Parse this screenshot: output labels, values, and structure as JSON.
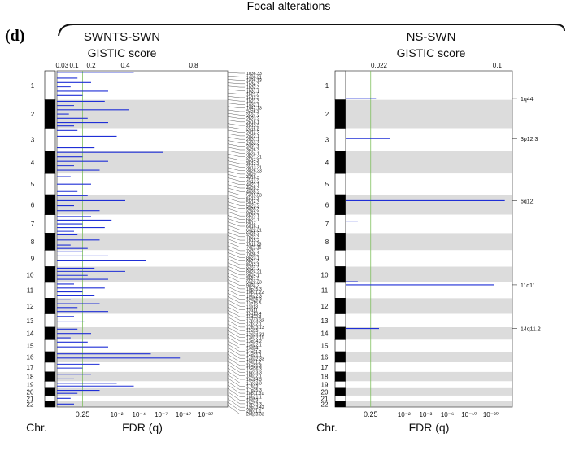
{
  "figure": {
    "panel_letter": "(d)",
    "group_title": "Focal alterations",
    "chr_label": "Chr."
  },
  "chart_data": [
    {
      "type": "bar",
      "orientation": "horizontal",
      "title": "SWNTS-SWN",
      "subtitle": "GISTIC score",
      "xlabel": "FDR (q)",
      "top_ticks": [
        "0.03",
        "0.1",
        "0.2",
        "0.4",
        "0.8"
      ],
      "top_tick_values": [
        0.03,
        0.1,
        0.2,
        0.4,
        0.8
      ],
      "bottom_ticks": [
        "0.25",
        "10⁻²",
        "10⁻⁴",
        "10⁻⁷",
        "10⁻¹⁰",
        "10⁻³⁰"
      ],
      "top_range": [
        0,
        1.0
      ],
      "threshold_q": 0.25,
      "chromosomes": [
        "1",
        "2",
        "3",
        "4",
        "5",
        "6",
        "7",
        "8",
        "9",
        "10",
        "11",
        "12",
        "13",
        "14",
        "15",
        "16",
        "17",
        "18",
        "19",
        "20",
        "21",
        "22"
      ],
      "chromosome_sizes": [
        249,
        243,
        198,
        191,
        181,
        171,
        159,
        146,
        141,
        136,
        135,
        134,
        115,
        107,
        103,
        90,
        83,
        80,
        59,
        64,
        47,
        51
      ],
      "series_color": "#1f2fd6",
      "bars": [
        {
          "chr": "1",
          "pos": 0.05,
          "score": 0.45
        },
        {
          "chr": "1",
          "pos": 0.25,
          "score": 0.12
        },
        {
          "chr": "1",
          "pos": 0.4,
          "score": 0.2
        },
        {
          "chr": "1",
          "pos": 0.55,
          "score": 0.08
        },
        {
          "chr": "1",
          "pos": 0.7,
          "score": 0.3
        },
        {
          "chr": "1",
          "pos": 0.85,
          "score": 0.15
        },
        {
          "chr": "2",
          "pos": 0.05,
          "score": 0.28
        },
        {
          "chr": "2",
          "pos": 0.2,
          "score": 0.1
        },
        {
          "chr": "2",
          "pos": 0.35,
          "score": 0.42
        },
        {
          "chr": "2",
          "pos": 0.5,
          "score": 0.07
        },
        {
          "chr": "2",
          "pos": 0.65,
          "score": 0.18
        },
        {
          "chr": "2",
          "pos": 0.8,
          "score": 0.3
        },
        {
          "chr": "2",
          "pos": 0.92,
          "score": 0.1
        },
        {
          "chr": "3",
          "pos": 0.1,
          "score": 0.12
        },
        {
          "chr": "3",
          "pos": 0.35,
          "score": 0.35
        },
        {
          "chr": "3",
          "pos": 0.6,
          "score": 0.09
        },
        {
          "chr": "3",
          "pos": 0.85,
          "score": 0.22
        },
        {
          "chr": "4",
          "pos": 0.05,
          "score": 0.62
        },
        {
          "chr": "4",
          "pos": 0.25,
          "score": 0.15
        },
        {
          "chr": "4",
          "pos": 0.45,
          "score": 0.3
        },
        {
          "chr": "4",
          "pos": 0.65,
          "score": 0.1
        },
        {
          "chr": "4",
          "pos": 0.85,
          "score": 0.25
        },
        {
          "chr": "5",
          "pos": 0.15,
          "score": 0.08
        },
        {
          "chr": "5",
          "pos": 0.5,
          "score": 0.2
        },
        {
          "chr": "5",
          "pos": 0.85,
          "score": 0.12
        },
        {
          "chr": "6",
          "pos": 0.05,
          "score": 0.18
        },
        {
          "chr": "6",
          "pos": 0.3,
          "score": 0.4
        },
        {
          "chr": "6",
          "pos": 0.55,
          "score": 0.1
        },
        {
          "chr": "6",
          "pos": 0.8,
          "score": 0.25
        },
        {
          "chr": "7",
          "pos": 0.1,
          "score": 0.2
        },
        {
          "chr": "7",
          "pos": 0.3,
          "score": 0.32
        },
        {
          "chr": "7",
          "pos": 0.5,
          "score": 0.15
        },
        {
          "chr": "7",
          "pos": 0.7,
          "score": 0.28
        },
        {
          "chr": "7",
          "pos": 0.9,
          "score": 0.1
        },
        {
          "chr": "8",
          "pos": 0.1,
          "score": 0.12
        },
        {
          "chr": "8",
          "pos": 0.4,
          "score": 0.25
        },
        {
          "chr": "8",
          "pos": 0.7,
          "score": 0.08
        },
        {
          "chr": "8",
          "pos": 0.9,
          "score": 0.18
        },
        {
          "chr": "9",
          "pos": 0.1,
          "score": 0.15
        },
        {
          "chr": "9",
          "pos": 0.35,
          "score": 0.3
        },
        {
          "chr": "9",
          "pos": 0.65,
          "score": 0.52
        },
        {
          "chr": "9",
          "pos": 0.9,
          "score": 0.12
        },
        {
          "chr": "10",
          "pos": 0.1,
          "score": 0.22
        },
        {
          "chr": "10",
          "pos": 0.3,
          "score": 0.4
        },
        {
          "chr": "10",
          "pos": 0.55,
          "score": 0.18
        },
        {
          "chr": "10",
          "pos": 0.8,
          "score": 0.3
        },
        {
          "chr": "11",
          "pos": 0.1,
          "score": 0.1
        },
        {
          "chr": "11",
          "pos": 0.35,
          "score": 0.28
        },
        {
          "chr": "11",
          "pos": 0.6,
          "score": 0.15
        },
        {
          "chr": "11",
          "pos": 0.85,
          "score": 0.22
        },
        {
          "chr": "12",
          "pos": 0.1,
          "score": 0.08
        },
        {
          "chr": "12",
          "pos": 0.35,
          "score": 0.25
        },
        {
          "chr": "12",
          "pos": 0.6,
          "score": 0.12
        },
        {
          "chr": "12",
          "pos": 0.85,
          "score": 0.3
        },
        {
          "chr": "13",
          "pos": 0.2,
          "score": 0.1
        },
        {
          "chr": "13",
          "pos": 0.6,
          "score": 0.16
        },
        {
          "chr": "14",
          "pos": 0.15,
          "score": 0.12
        },
        {
          "chr": "14",
          "pos": 0.5,
          "score": 0.2
        },
        {
          "chr": "14",
          "pos": 0.85,
          "score": 0.08
        },
        {
          "chr": "15",
          "pos": 0.2,
          "score": 0.18
        },
        {
          "chr": "15",
          "pos": 0.6,
          "score": 0.3
        },
        {
          "chr": "16",
          "pos": 0.2,
          "score": 0.55
        },
        {
          "chr": "16",
          "pos": 0.6,
          "score": 0.72
        },
        {
          "chr": "17",
          "pos": 0.2,
          "score": 0.25
        },
        {
          "chr": "17",
          "pos": 0.6,
          "score": 0.15
        },
        {
          "chr": "18",
          "pos": 0.25,
          "score": 0.2
        },
        {
          "chr": "18",
          "pos": 0.75,
          "score": 0.1
        },
        {
          "chr": "19",
          "pos": 0.3,
          "score": 0.35
        },
        {
          "chr": "19",
          "pos": 0.7,
          "score": 0.45
        },
        {
          "chr": "20",
          "pos": 0.3,
          "score": 0.25
        },
        {
          "chr": "20",
          "pos": 0.7,
          "score": 0.12
        },
        {
          "chr": "21",
          "pos": 0.5,
          "score": 0.08
        },
        {
          "chr": "22",
          "pos": 0.5,
          "score": 0.1
        }
      ],
      "peak_labels": [
        "1q36.33",
        "1q36.21",
        "1p36.13",
        "1p34.3",
        "1p32.3",
        "1p31.1",
        "1p21.3",
        "1p13.2",
        "1q21.3",
        "1q32.1",
        "1q42.13",
        "2p25.3",
        "2p24.3",
        "2p23.2",
        "2p16.1",
        "2p13.3",
        "2q11.2",
        "2q14.3",
        "2q22.1",
        "2q31.1",
        "2q33.3",
        "2q37.1",
        "3p26.3",
        "3p24.1",
        "3p21.31",
        "3p14.2",
        "3p12.3",
        "3q13.31",
        "3q26.33",
        "3q29",
        "4p16.3",
        "4q13.2",
        "4q22.1",
        "4q28.3",
        "4q35.2",
        "5p15.33",
        "5p13.3",
        "5q14.3",
        "5q23.2",
        "5q35.3",
        "6p25.3",
        "6p22.1",
        "6p21.1",
        "6q12",
        "6q16.1",
        "6q22.31",
        "6q25.3",
        "7p22.3",
        "7p15.2",
        "7q11.23",
        "7q21.11",
        "7q31.2",
        "7q36.3",
        "8p23.1",
        "8p21.3",
        "8q12.1",
        "8q21.3",
        "8q24.21",
        "9p24.1",
        "9p21.3",
        "9q22.33",
        "9q34.3",
        "10p15.3",
        "10p11.22",
        "10q22.3",
        "10q26.3",
        "11p15.5",
        "11p13",
        "11q11",
        "11q13.4",
        "11q22.3",
        "12p13.33",
        "12p12.1",
        "12q13.13",
        "12q15",
        "12q24.31",
        "13q12.11",
        "13q14.2",
        "13q22.1",
        "13q34",
        "14q11.2",
        "14q21.1",
        "14q32.33",
        "15q11.2",
        "15q21.3",
        "15q26.3",
        "16p13.3",
        "16q12.1",
        "16q24.3",
        "17p13.3",
        "17q12",
        "17q25.3",
        "18p11.31",
        "18q21.1",
        "18q23",
        "19p13.3",
        "19q13.42",
        "20p11.1",
        "20q13.33"
      ]
    },
    {
      "type": "bar",
      "orientation": "horizontal",
      "title": "NS-SWN",
      "subtitle": "GISTIC score",
      "xlabel": "FDR (q)",
      "top_ticks": [
        "0.022",
        "0.1"
      ],
      "top_tick_values": [
        0.022,
        0.1
      ],
      "bottom_ticks": [
        "0.25",
        "10⁻²",
        "10⁻³",
        "10⁻⁶",
        "10⁻¹⁰",
        "10⁻²⁰"
      ],
      "top_range": [
        0,
        0.11
      ],
      "threshold_q": 0.25,
      "chromosomes": [
        "1",
        "2",
        "3",
        "4",
        "5",
        "6",
        "7",
        "8",
        "9",
        "10",
        "11",
        "12",
        "13",
        "14",
        "15",
        "16",
        "17",
        "18",
        "19",
        "20",
        "21",
        "22"
      ],
      "chromosome_sizes": [
        249,
        243,
        198,
        191,
        181,
        171,
        159,
        146,
        141,
        136,
        135,
        134,
        115,
        107,
        103,
        90,
        83,
        80,
        59,
        64,
        47,
        51
      ],
      "series_color": "#1f2fd6",
      "bars": [
        {
          "chr": "1",
          "pos": 0.95,
          "score": 0.02,
          "label": "1q44"
        },
        {
          "chr": "3",
          "pos": 0.45,
          "score": 0.029,
          "label": "3p12.3"
        },
        {
          "chr": "6",
          "pos": 0.3,
          "score": 0.105,
          "label": "6q12"
        },
        {
          "chr": "7",
          "pos": 0.35,
          "score": 0.008
        },
        {
          "chr": "10",
          "pos": 0.95,
          "score": 0.008
        },
        {
          "chr": "11",
          "pos": 0.15,
          "score": 0.098,
          "label": "11q11"
        },
        {
          "chr": "14",
          "pos": 0.1,
          "score": 0.022,
          "label": "14q11.2"
        }
      ]
    }
  ]
}
